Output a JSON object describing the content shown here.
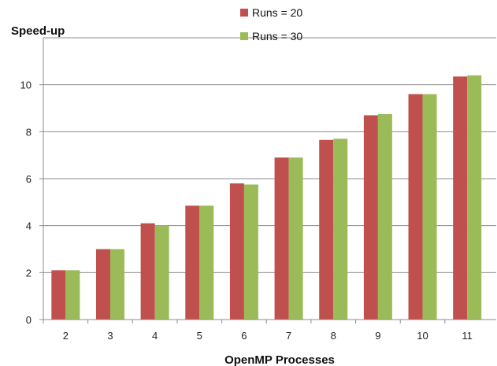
{
  "chart_data": {
    "type": "bar",
    "ylabel": "Speed-up",
    "xlabel": "OpenMP Processes",
    "categories": [
      "2",
      "3",
      "4",
      "5",
      "6",
      "7",
      "8",
      "9",
      "10",
      "11"
    ],
    "series": [
      {
        "name": "Runs = 20",
        "color": "#c0504d",
        "values": [
          2.1,
          3.0,
          4.1,
          4.85,
          5.8,
          6.9,
          7.65,
          8.7,
          9.6,
          10.35
        ]
      },
      {
        "name": "Runs = 30",
        "color": "#9bbb59",
        "values": [
          2.1,
          3.0,
          4.0,
          4.85,
          5.75,
          6.9,
          7.7,
          8.75,
          9.6,
          10.4
        ]
      }
    ],
    "yticks": [
      "0",
      "2",
      "4",
      "6",
      "8",
      "10"
    ],
    "ylim": [
      0,
      12
    ],
    "grid": true,
    "legend_position": "top-center"
  }
}
